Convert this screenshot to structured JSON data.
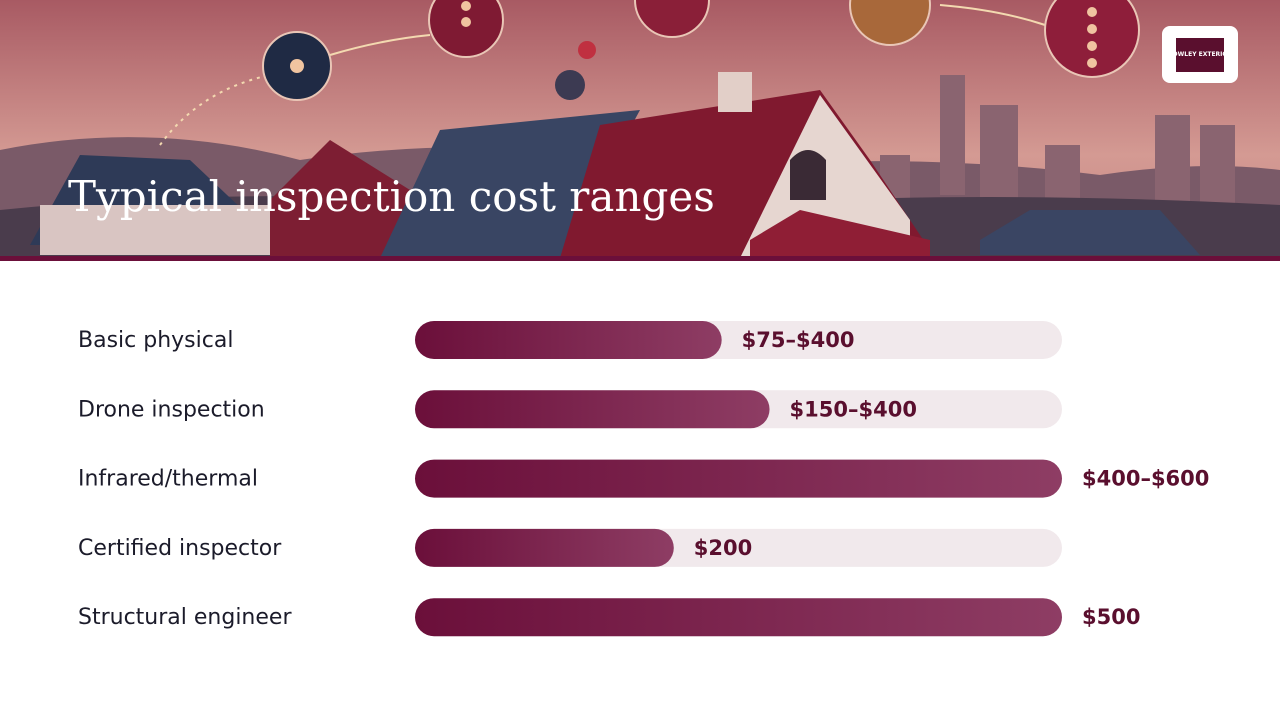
{
  "logo": "CROWLEY EXTERIORS",
  "chart_data": {
    "type": "bar",
    "orientation": "horizontal",
    "title": "Typical inspection cost ranges",
    "categories": [
      "Basic physical",
      "Drone inspection",
      "Infrared/thermal",
      "Certified inspector",
      "Structural engineer"
    ],
    "values": [
      237,
      274,
      500,
      200,
      500
    ],
    "bar_labels": [
      "$75–$400",
      "$150–$400",
      "$400–$600",
      "$200",
      "$500"
    ],
    "xlim": [
      0,
      500
    ],
    "color": "#6b0f3a",
    "color_end": "#8e3d64",
    "track_color": "#f1e9ec"
  }
}
